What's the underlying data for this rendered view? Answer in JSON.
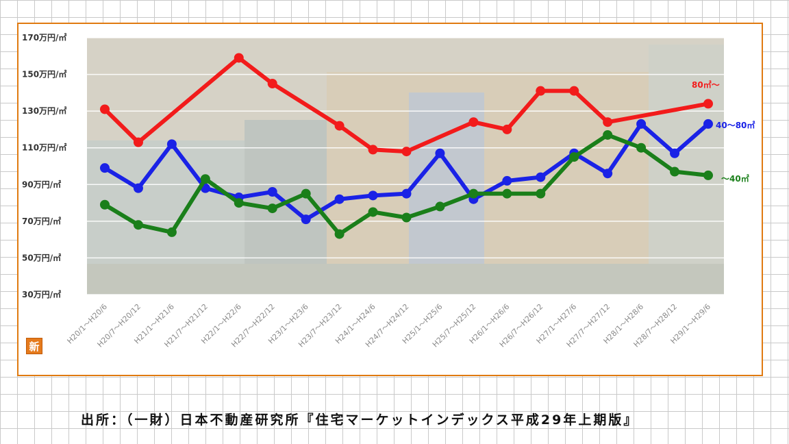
{
  "badge": "新",
  "source": "出所：（一財）日本不動産研究所『住宅マーケットインデックス平成29年上期版』",
  "colors": {
    "frame": "#e07a10",
    "plot_bg": "#d6d2c6",
    "series_red": "#f21b1b",
    "series_blue": "#1a22e6",
    "series_green": "#1a7f1a"
  },
  "chart_data": {
    "type": "line",
    "title": "",
    "xlabel": "",
    "ylabel": "",
    "ylim": [
      30,
      170
    ],
    "yticks": [
      30,
      50,
      70,
      90,
      110,
      130,
      150,
      170
    ],
    "ytick_labels": [
      "30万円/㎡",
      "50万円/㎡",
      "70万円/㎡",
      "90万円/㎡",
      "110万円/㎡",
      "130万円/㎡",
      "150万円/㎡",
      "170万円/㎡"
    ],
    "categories": [
      "H20/1～H20/6",
      "H20/7～H20/12",
      "H21/1～H21/6",
      "H21/7～H21/12",
      "H22/1～H22/6",
      "H22/7～H22/12",
      "H23/1～H23/6",
      "H23/7～H23/12",
      "H24/1～H24/6",
      "H24/7～H24/12",
      "H25/1～H25/6",
      "H25/7～H25/12",
      "H26/1～H26/6",
      "H26/7～H26/12",
      "H27/1～H27/6",
      "H27/7～H27/12",
      "H28/1～H28/6",
      "H28/7～H28/12",
      "H29/1～H29/6"
    ],
    "series": [
      {
        "name": "80㎡～",
        "color": "#f21b1b",
        "values": [
          131,
          113,
          null,
          null,
          159,
          145,
          null,
          122,
          109,
          108,
          null,
          124,
          120,
          141,
          141,
          124,
          null,
          null,
          134
        ]
      },
      {
        "name": "40～80㎡",
        "color": "#1a22e6",
        "values": [
          99,
          88,
          112,
          88,
          83,
          86,
          71,
          82,
          84,
          85,
          107,
          82,
          92,
          94,
          107,
          96,
          123,
          107,
          123
        ]
      },
      {
        "name": "～40㎡",
        "color": "#1a7f1a",
        "values": [
          79,
          68,
          64,
          93,
          80,
          77,
          85,
          63,
          75,
          72,
          78,
          85,
          85,
          85,
          105,
          117,
          110,
          97,
          95
        ]
      }
    ],
    "legend": "inline-right",
    "grid": true
  }
}
